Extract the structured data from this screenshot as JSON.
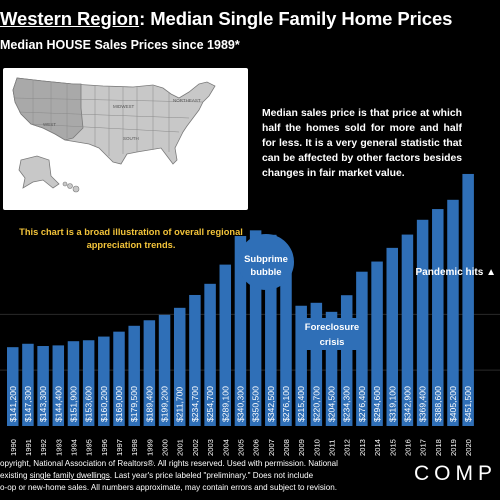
{
  "title": {
    "region": "Western Region",
    "rest": ": Median Single Family Home Prices"
  },
  "subtitle": "Median HOUSE Sales Prices since 1989*",
  "map": {
    "region_labels": [
      "WEST",
      "MIDWEST",
      "NORTHEAST",
      "SOUTH"
    ]
  },
  "notes": {
    "main": "Median sales price is that price at which half the homes sold for more and half for less. It is a very general statistic that can be affected by other factors besides changes in fair market value.",
    "small": "This chart is a broad illustration of overall regional appreciation trends."
  },
  "annotations": {
    "subprime": "Subprime bubble",
    "foreclosure": "Foreclosure crisis",
    "pandemic": "Pandemic hits ▲"
  },
  "footer": {
    "line1": "opyright, National Association of Realtors®. All rights reserved. Used with permission. National",
    "line2_pre": " existing ",
    "line2_u": "single family dwellings",
    "line2_post": ". Last year's price labeled \"preliminary.\" Does not include",
    "line3": "o-op or new-home sales. All numbers approximate, may contain errors and subject to revision."
  },
  "brand": "COMP",
  "colors": {
    "bar": "#2f6fb7",
    "background": "#000000",
    "accent_text": "#f3c43a",
    "bubble": "#2f6fb7"
  },
  "chart_data": {
    "type": "bar",
    "categories": [
      "1990",
      "1991",
      "1992",
      "1993",
      "1994",
      "1995",
      "1996",
      "1997",
      "1998",
      "1999",
      "2000",
      "2001",
      "2002",
      "2003",
      "2004",
      "2005",
      "2006",
      "2007",
      "2008",
      "2009",
      "2010",
      "2011",
      "2012",
      "2013",
      "2014",
      "2015",
      "2016",
      "2017",
      "2018",
      "2019",
      "2020"
    ],
    "values": [
      141200,
      147300,
      143300,
      144400,
      151900,
      153600,
      160200,
      169000,
      179500,
      189400,
      199200,
      211700,
      234700,
      254700,
      289100,
      340300,
      350500,
      342500,
      276100,
      215400,
      220700,
      204500,
      234300,
      276400,
      294600,
      319100,
      342900,
      369400,
      388600,
      405200,
      451500
    ],
    "value_labels": [
      "$141,200",
      "$147,300",
      "$143,300",
      "$144,400",
      "$151,900",
      "$153,600",
      "$160,200",
      "$169,000",
      "$179,500",
      "$189,400",
      "$199,200",
      "$211,700",
      "$234,700",
      "$254,700",
      "$289,100",
      "$340,300",
      "$350,500",
      "$342,500",
      "$276,100",
      "$215,400",
      "$220,700",
      "$204,500",
      "$234,300",
      "$276,400",
      "$294,600",
      "$319,100",
      "$342,900",
      "$369,400",
      "$388,600",
      "$405,200",
      "$451,500"
    ],
    "title": "",
    "xlabel": "",
    "ylabel": "",
    "ylim": [
      0,
      455000
    ],
    "grid": true
  }
}
